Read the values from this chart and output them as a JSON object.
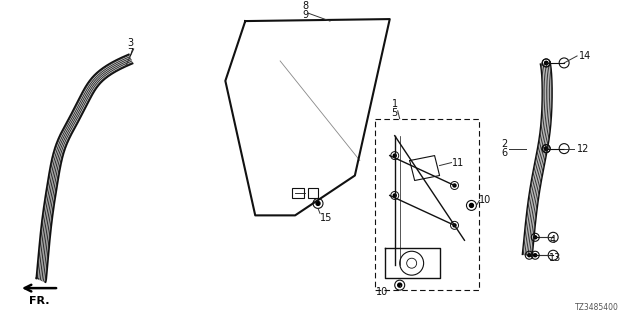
{
  "bg_color": "#ffffff",
  "fig_width": 6.4,
  "fig_height": 3.2,
  "dpi": 100,
  "text_color": "#111111",
  "line_color": "#111111",
  "part_label_size": 7.0
}
